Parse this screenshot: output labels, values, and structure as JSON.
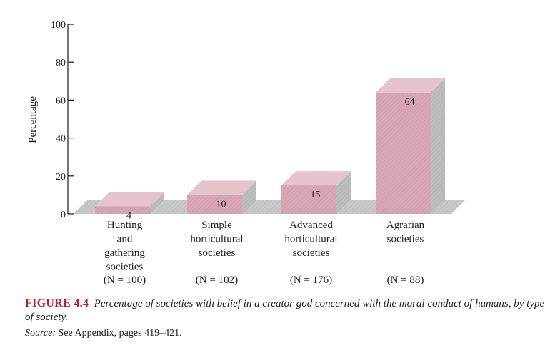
{
  "chart_data": {
    "type": "bar",
    "ylabel": "Percentage",
    "ylim": [
      0,
      100
    ],
    "yticks": [
      0,
      20,
      40,
      60,
      80,
      100
    ],
    "grid": false,
    "categories": [
      {
        "lines": [
          "Hunting",
          "and",
          "gathering",
          "societies"
        ],
        "n_label": "(N = 100)",
        "value": 4,
        "value_label": "4"
      },
      {
        "lines": [
          "Simple",
          "horticultural",
          "societies"
        ],
        "n_label": "(N = 102)",
        "value": 10,
        "value_label": "10"
      },
      {
        "lines": [
          "Advanced",
          "horticultural",
          "societies"
        ],
        "n_label": "(N = 176)",
        "value": 15,
        "value_label": "15"
      },
      {
        "lines": [
          "Agrarian",
          "societies"
        ],
        "n_label": "(N = 88)",
        "value": 64,
        "value_label": "64"
      }
    ],
    "colors": {
      "bar_front": "#d8a7b4",
      "bar_top": "#e7c3cc",
      "bar_side": "#bdbdbd",
      "floor": "#c4c4c4",
      "axis": "#1a1a1a"
    }
  },
  "caption": {
    "figure_number": "FIGURE 4.4",
    "text": "Percentage of societies with belief in a creator god concerned with the moral conduct of humans, by type of society."
  },
  "source": {
    "label": "Source:",
    "text": "See Appendix, pages 419–421."
  }
}
